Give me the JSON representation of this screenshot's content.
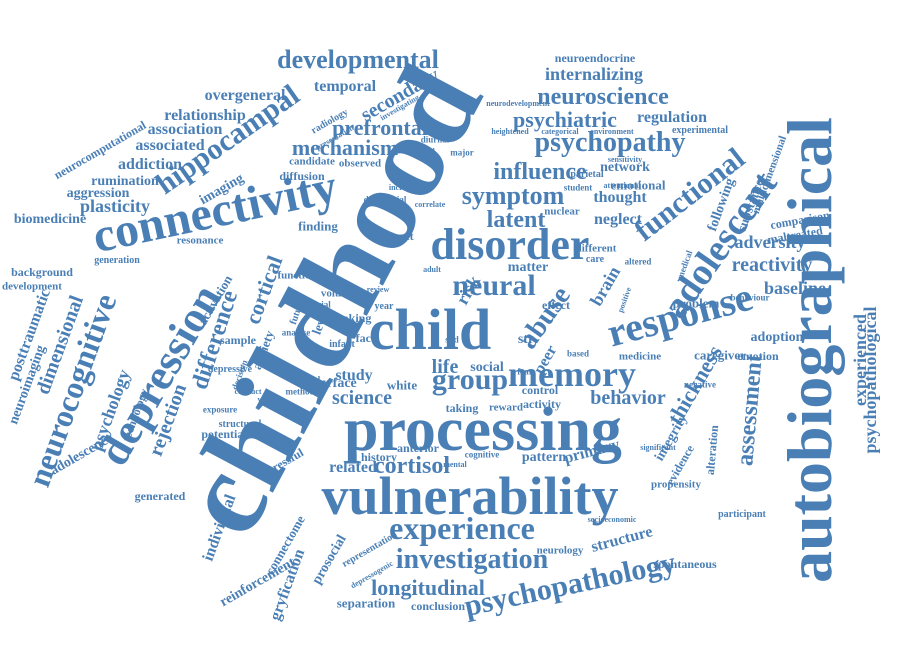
{
  "color": "#4a7fb5",
  "words": [
    "childhood",
    "vulnerability",
    "processing",
    "autobiographical",
    "connectivity",
    "depression",
    "child",
    "disorder",
    "response",
    "adolescent",
    "memory",
    "experience",
    "neurocognitive",
    "functional",
    "hippocampal",
    "psychopathology",
    "abuse",
    "developmental",
    "group",
    "neural",
    "symptom",
    "psychopathy",
    "neuroscience",
    "investigation",
    "psychiatric",
    "influence",
    "prefrontal",
    "difference",
    "cortisol",
    "mechanism",
    "secondary",
    "assessment",
    "latent",
    "cortical",
    "thickness",
    "behavior",
    "longitudinal",
    "science",
    "life",
    "rejection",
    "dimensional",
    "psychology",
    "psychopathological",
    "experienced",
    "posttraumatic",
    "reactivity",
    "adversity",
    "baseline",
    "internalizing",
    "relationship",
    "association",
    "associated",
    "addiction",
    "rumination",
    "aggression",
    "plasticity",
    "biomedicine",
    "background",
    "development",
    "neuroimaging",
    "adolescence",
    "technology",
    "overgeneral",
    "temporal",
    "regulation",
    "neuroendocrine",
    "network",
    "emotional",
    "neglect",
    "thought",
    "brain",
    "risk",
    "peer",
    "study",
    "social",
    "surface",
    "white",
    "related",
    "generated",
    "individual",
    "gryfication",
    "reinforcement",
    "connectome",
    "prosocial",
    "separation",
    "conclusion",
    "structure",
    "neurology",
    "primary",
    "pattern",
    "history",
    "anterior",
    "potential",
    "stressful",
    "alteration",
    "integrity",
    "evidence",
    "propensity",
    "participant",
    "spontaneous",
    "adoption",
    "caregiver",
    "maltreated",
    "comparison",
    "following",
    "substance",
    "multidimensional",
    "experimental",
    "neurocomputational",
    "imaging",
    "diffusion",
    "candidate",
    "observed",
    "radiology",
    "investigating",
    "activation",
    "anxiety",
    "level",
    "sample",
    "resonance",
    "generation",
    "finding",
    "impact",
    "function",
    "volume",
    "making",
    "face",
    "effect",
    "matter",
    "control",
    "activity",
    "reward",
    "taking",
    "emotion",
    "medicine",
    "problem",
    "behaviour",
    "depressive",
    "exposure",
    "different",
    "nuclear",
    "parietal",
    "student",
    "attentional",
    "sensitivity",
    "environment",
    "categorical",
    "heightened",
    "neurodevelopment",
    "presentation",
    "diurnal",
    "major",
    "cbcl",
    "analyse",
    "infant",
    "future",
    "social",
    "year",
    "care",
    "medical",
    "negative",
    "altered",
    "positive",
    "based",
    "fear",
    "atypical",
    "method",
    "decision",
    "conduct",
    "significant",
    "version",
    "structural",
    "differential",
    "increased",
    "correlate",
    "sud",
    "str",
    "depressogenic",
    "representation",
    "socioeconomic",
    "cognitive",
    "mental",
    "review",
    "adult"
  ]
}
